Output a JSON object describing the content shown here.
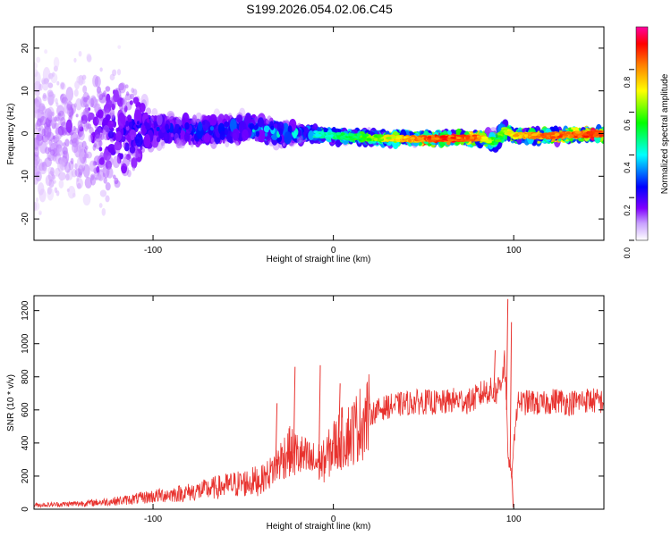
{
  "title": "S199.2026.054.02.06.C45",
  "chart_data": [
    {
      "type": "heatmap",
      "xlabel": "Height of straight line (km)",
      "ylabel": "Frequency (Hz)",
      "xlim": [
        -166,
        150
      ],
      "ylim": [
        -25,
        25
      ],
      "xticks": [
        -100,
        0,
        100
      ],
      "yticks": [
        -20,
        -10,
        0,
        10,
        20
      ],
      "colorbar": {
        "label": "Normalized spectral amplitude",
        "range": [
          0,
          1
        ],
        "ticks": [
          "0.0",
          "0.2",
          "0.4",
          "0.6",
          "0.8"
        ],
        "colors": [
          "#ffffff",
          "#8000ff",
          "#0000ff",
          "#00ffff",
          "#00ff00",
          "#ffff00",
          "#ff8000",
          "#ff0000",
          "#ff00a0"
        ]
      },
      "band_profile": {
        "x_km": [
          -166,
          -140,
          -120,
          -100,
          -80,
          -60,
          -45,
          -30,
          -15,
          0,
          20,
          40,
          60,
          80,
          90,
          95,
          100,
          120,
          150
        ],
        "center_hz": [
          0,
          0,
          0,
          1,
          0.5,
          1,
          1.5,
          0,
          0,
          -0.5,
          -1,
          -1.2,
          -1.2,
          -1,
          -2,
          1,
          -0.5,
          -0.5,
          0
        ],
        "peak_amplitude": [
          0.08,
          0.1,
          0.18,
          0.25,
          0.3,
          0.32,
          0.36,
          0.38,
          0.4,
          0.45,
          0.55,
          0.75,
          0.85,
          0.8,
          0.5,
          0.6,
          0.7,
          0.8,
          0.85
        ],
        "spread_hz": [
          25,
          25,
          22,
          5,
          4.5,
          4,
          4,
          3.5,
          2,
          1.5,
          1.2,
          1.2,
          1.2,
          1.3,
          3,
          3,
          1.3,
          1.2,
          1.2
        ]
      }
    },
    {
      "type": "line",
      "xlabel": "Height of straight line (km)",
      "ylabel": "SNR (10 * v/v)",
      "xlim": [
        -166,
        150
      ],
      "ylim": [
        0,
        1290
      ],
      "xticks": [
        -100,
        0,
        100
      ],
      "yticks": [
        0,
        200,
        400,
        600,
        800,
        1000,
        1200
      ],
      "color": "#e8322e",
      "series": [
        {
          "x": [
            -166,
            -155,
            -145,
            -135,
            -125,
            -115,
            -105,
            -95,
            -85,
            -75,
            -65,
            -55,
            -45,
            -40,
            -35,
            -30,
            -25,
            -20,
            -15,
            -10,
            -5,
            0,
            5,
            10,
            15,
            20,
            25,
            30,
            35,
            40,
            45,
            50,
            55,
            60,
            65,
            70,
            75,
            80,
            85,
            90,
            93,
            95,
            97,
            99,
            101,
            103,
            105,
            110,
            115,
            120,
            125,
            130,
            135,
            140,
            145,
            150
          ],
          "y": [
            25,
            28,
            32,
            38,
            45,
            55,
            70,
            85,
            95,
            110,
            130,
            150,
            165,
            180,
            220,
            290,
            350,
            330,
            300,
            280,
            290,
            380,
            430,
            460,
            520,
            570,
            600,
            620,
            630,
            640,
            645,
            650,
            645,
            640,
            655,
            660,
            650,
            680,
            720,
            700,
            780,
            900,
            300,
            200,
            550,
            660,
            640,
            650,
            630,
            650,
            660,
            640,
            650,
            660,
            655,
            650
          ]
        }
      ],
      "annotations": {
        "spikes": [
          {
            "x": -32,
            "y": 640
          },
          {
            "x": -22,
            "y": 860
          },
          {
            "x": -8,
            "y": 870
          },
          {
            "x": 3,
            "y": 760
          },
          {
            "x": 89,
            "y": 960
          },
          {
            "x": 96,
            "y": 1270
          },
          {
            "x": 98,
            "y": 1130
          },
          {
            "x": 99,
            "y": 10
          }
        ]
      }
    }
  ]
}
